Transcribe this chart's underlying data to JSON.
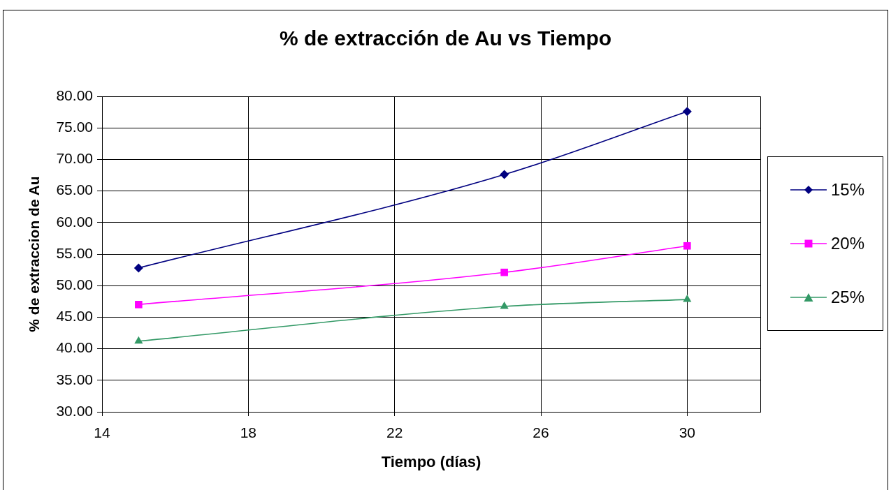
{
  "chart_data": {
    "type": "line",
    "title": "% de extracción de Au vs Tiempo",
    "xlabel": "Tiempo (días)",
    "ylabel": "% de extraccion de Au",
    "x": [
      15,
      25,
      30
    ],
    "series": [
      {
        "name": "15%",
        "color": "#000080",
        "marker": "diamond",
        "values": [
          52.8,
          67.6,
          77.6
        ]
      },
      {
        "name": "20%",
        "color": "#ff00ff",
        "marker": "square",
        "values": [
          47.0,
          52.1,
          56.3
        ]
      },
      {
        "name": "25%",
        "color": "#339966",
        "marker": "triangle",
        "values": [
          41.2,
          46.7,
          47.8
        ]
      }
    ],
    "xlim": [
      14,
      32
    ],
    "xticks": [
      14,
      18,
      22,
      26,
      30
    ],
    "ylim": [
      30,
      80
    ],
    "yticks": [
      {
        "value": 30,
        "label": "30.00"
      },
      {
        "value": 35,
        "label": "35.00"
      },
      {
        "value": 40,
        "label": "40.00"
      },
      {
        "value": 45,
        "label": "45.00"
      },
      {
        "value": 50,
        "label": "50.00"
      },
      {
        "value": 55,
        "label": "55.00"
      },
      {
        "value": 60,
        "label": "60.00"
      },
      {
        "value": 65,
        "label": "65.00"
      },
      {
        "value": 70,
        "label": "70.00"
      },
      {
        "value": 75,
        "label": "75.00"
      },
      {
        "value": 80,
        "label": "80.00"
      }
    ],
    "grid": true,
    "legend": "right",
    "line_style": "solid"
  }
}
